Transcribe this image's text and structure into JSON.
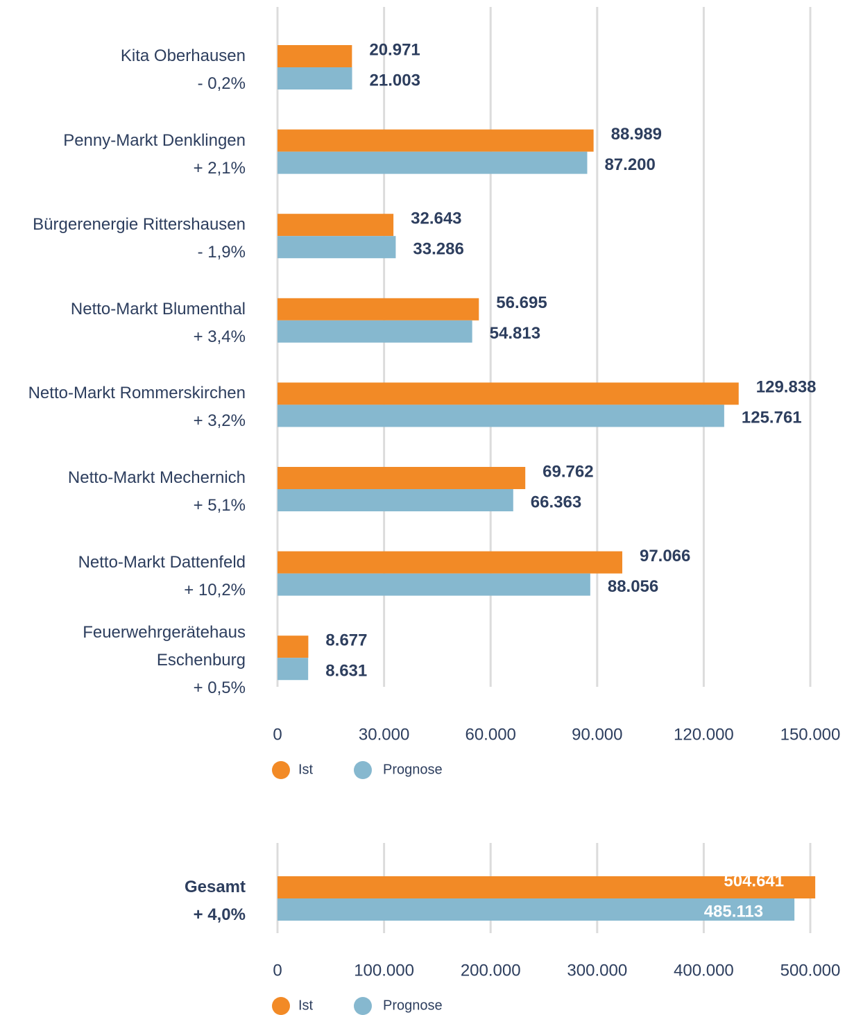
{
  "chart_data": [
    {
      "type": "bar",
      "orientation": "horizontal",
      "categories": [
        "Kita Oberhausen",
        "Penny-Markt Denklingen",
        "Bürgerenergie Rittershausen",
        "Netto-Markt Blumenthal",
        "Netto-Markt Rommerskirchen",
        "Netto-Markt Mechernich",
        "Netto-Markt Dattenfeld",
        "Feuerwehrgerätehaus Eschenburg"
      ],
      "changes": [
        "- 0,2%",
        "+ 2,1%",
        "- 1,9%",
        "+ 3,4%",
        "+ 3,2%",
        "+ 5,1%",
        "+ 10,2%",
        "+ 0,5%"
      ],
      "series": [
        {
          "name": "Ist",
          "color": "#f28a26",
          "values": [
            20971,
            88989,
            32643,
            56695,
            129838,
            69762,
            97066,
            8677
          ],
          "value_labels": [
            "20.971",
            "88.989",
            "32.643",
            "56.695",
            "129.838",
            "69.762",
            "97.066",
            "8.677"
          ]
        },
        {
          "name": "Prognose",
          "color": "#86b8cf",
          "values": [
            21003,
            87200,
            33286,
            54813,
            125761,
            66363,
            88056,
            8631
          ],
          "value_labels": [
            "21.003",
            "87.200",
            "33.286",
            "54.813",
            "125.761",
            "66.363",
            "88.056",
            "8.631"
          ]
        }
      ],
      "xlim": [
        0,
        150000
      ],
      "xticks": [
        0,
        {
          "value": 30000,
          "label": "30.000"
        },
        {
          "value": 60000,
          "label": "60.000"
        },
        {
          "value": 90000,
          "label": "90.000"
        },
        {
          "value": 120000,
          "label": "120.000"
        },
        {
          "value": 150000,
          "label": "150.000"
        }
      ],
      "grid": true,
      "value_label_position": "outside",
      "category_bold": false,
      "legend": "bottom-left"
    },
    {
      "type": "bar",
      "orientation": "horizontal",
      "categories": [
        "Gesamt"
      ],
      "changes": [
        "+ 4,0%"
      ],
      "series": [
        {
          "name": "Ist",
          "color": "#f28a26",
          "values": [
            504641
          ],
          "value_labels": [
            "504.641"
          ]
        },
        {
          "name": "Prognose",
          "color": "#86b8cf",
          "values": [
            485113
          ],
          "value_labels": [
            "485.113"
          ]
        }
      ],
      "xlim": [
        0,
        500000
      ],
      "xticks": [
        0,
        {
          "value": 100000,
          "label": "100.000"
        },
        {
          "value": 200000,
          "label": "200.000"
        },
        {
          "value": 300000,
          "label": "300.000"
        },
        {
          "value": 400000,
          "label": "400.000"
        },
        {
          "value": 500000,
          "label": "500.000"
        }
      ],
      "grid": true,
      "value_label_position": "inside",
      "category_bold": true,
      "legend": "bottom-left"
    }
  ]
}
